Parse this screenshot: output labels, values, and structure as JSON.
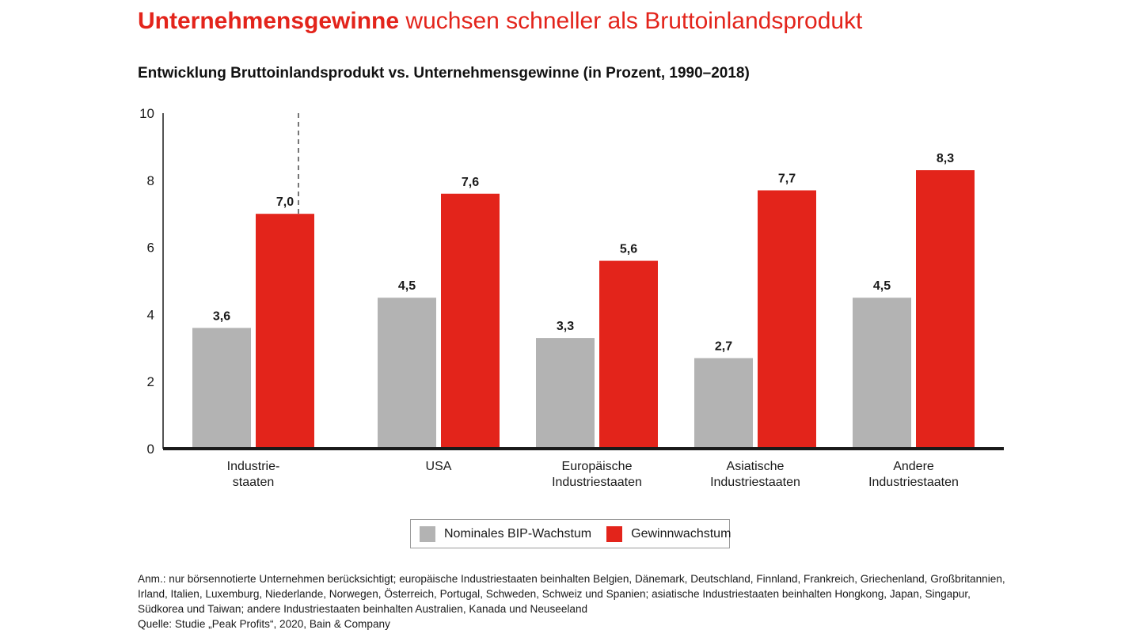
{
  "header": {
    "title_bold": "Unternehmensgewinne",
    "title_rest": "wuchsen schneller als Bruttoinlandsprodukt",
    "subtitle": "Entwicklung Bruttoinlandsprodukt vs. Unternehmensgewinne (in Prozent, 1990–2018)"
  },
  "chart_data": {
    "type": "bar",
    "title": "Entwicklung Bruttoinlandsprodukt vs. Unternehmensgewinne (in Prozent, 1990–2018)",
    "xlabel": "",
    "ylabel": "",
    "ylim": [
      0,
      10
    ],
    "yticks": [
      0,
      2,
      4,
      6,
      8,
      10
    ],
    "grid": false,
    "legend_position": "bottom-center",
    "categories": [
      [
        "Industrie-",
        "staaten"
      ],
      [
        "USA"
      ],
      [
        "Europäische",
        "Industriestaaten"
      ],
      [
        "Asiatische",
        "Industriestaaten"
      ],
      [
        "Andere",
        "Industriestaaten"
      ]
    ],
    "series": [
      {
        "name": "Nominales BIP-Wachstum",
        "color": "#b3b3b3",
        "values": [
          3.6,
          4.5,
          3.3,
          2.7,
          4.5
        ],
        "labels": [
          "3,6",
          "4,5",
          "3,3",
          "2,7",
          "4,5"
        ]
      },
      {
        "name": "Gewinnwachstum",
        "color": "#e3241b",
        "values": [
          7.0,
          7.6,
          5.6,
          7.7,
          8.3
        ],
        "labels": [
          "7,0",
          "7,6",
          "5,6",
          "7,7",
          "8,3"
        ]
      }
    ],
    "separator_after_category": 0
  },
  "legend": {
    "items": [
      {
        "label": "Nominales BIP-Wachstum",
        "color": "#b3b3b3"
      },
      {
        "label": "Gewinnwachstum",
        "color": "#e3241b"
      }
    ]
  },
  "footnote": {
    "note": "Anm.: nur börsennotierte Unternehmen berücksichtigt; europäische Industriestaaten beinhalten Belgien, Dänemark, Deutschland, Finnland, Frankreich, Griechenland, Großbritannien, Irland, Italien, Luxemburg, Niederlande, Norwegen, Österreich, Portugal, Schweden, Schweiz und Spanien; asiatische Industriestaaten beinhalten Hongkong, Japan, Singapur, Südkorea und Taiwan; andere Industriestaaten beinhalten Australien, Kanada und Neuseeland",
    "source": "Quelle: Studie „Peak Profits“, 2020, Bain & Company"
  }
}
